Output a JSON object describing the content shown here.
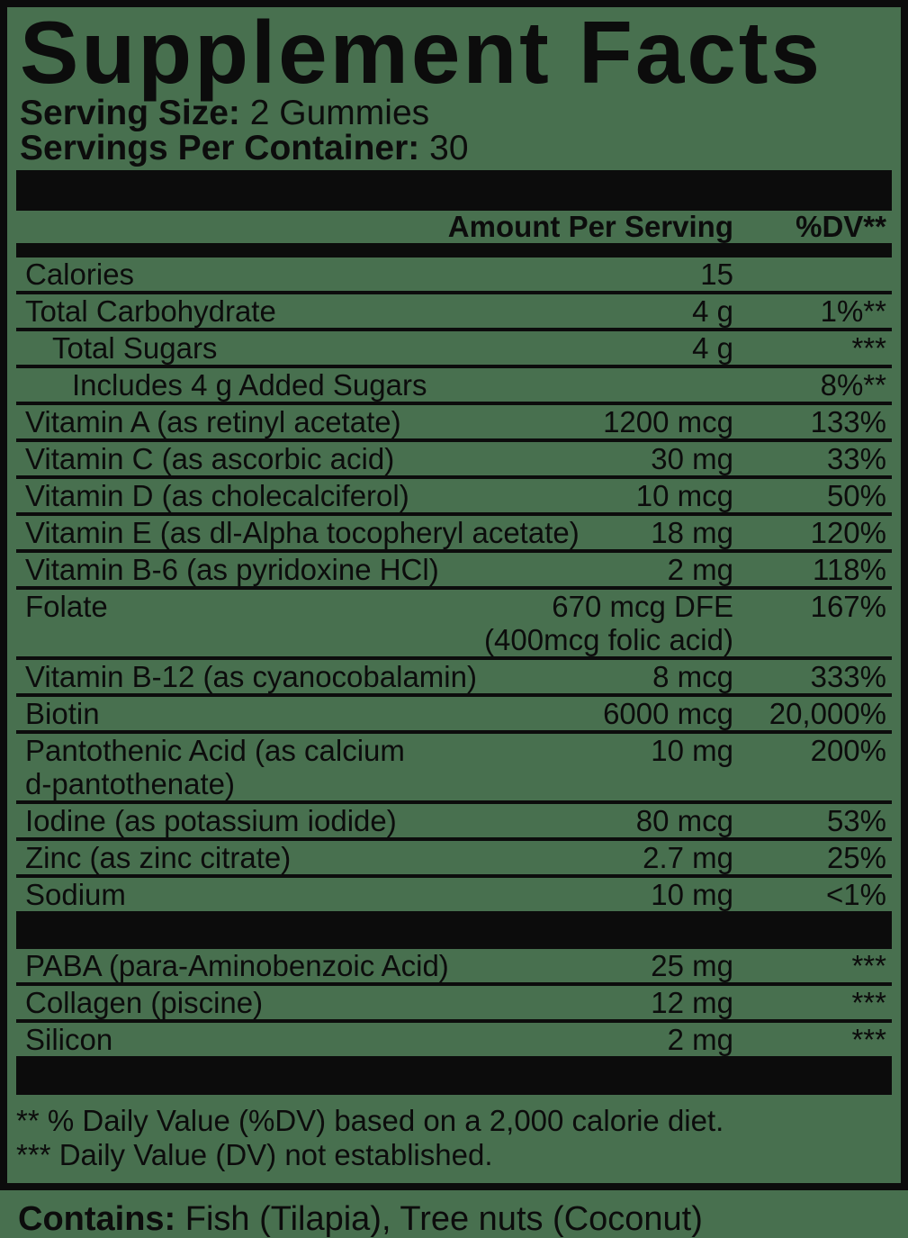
{
  "colors": {
    "background": "#48704F",
    "ink": "#0C0C0C"
  },
  "title": "Supplement Facts",
  "serving": {
    "size_label": "Serving Size:",
    "size_value": " 2 Gummies",
    "count_label": "Servings Per Container:",
    "count_value": " 30"
  },
  "table": {
    "amount_header": "Amount Per Serving",
    "dv_header": "%DV**",
    "rows": [
      {
        "name": "Calories",
        "amount": "15",
        "dv": "",
        "indent": 0
      },
      {
        "name": "Total Carbohydrate",
        "amount": "4 g",
        "dv": "1%**",
        "indent": 0
      },
      {
        "name": "Total Sugars",
        "amount": "4 g",
        "dv": "***",
        "indent": 1
      },
      {
        "name": "Includes 4 g Added Sugars",
        "amount": "",
        "dv": "8%**",
        "indent": 2
      },
      {
        "name": "Vitamin A (as retinyl acetate)",
        "amount": "1200 mcg",
        "dv": "133%",
        "indent": 0
      },
      {
        "name": "Vitamin C (as ascorbic acid)",
        "amount": "30 mg",
        "dv": "33%",
        "indent": 0
      },
      {
        "name": "Vitamin D (as cholecalciferol)",
        "amount": "10 mcg",
        "dv": "50%",
        "indent": 0
      },
      {
        "name": "Vitamin E (as dl-Alpha tocopheryl acetate)",
        "amount": "18 mg",
        "dv": "120%",
        "indent": 0
      },
      {
        "name": "Vitamin B-6 (as pyridoxine HCl)",
        "amount": "2 mg",
        "dv": "118%",
        "indent": 0
      },
      {
        "name": "Folate",
        "amount": "670 mcg DFE",
        "dv": "167%",
        "indent": 0,
        "amount2": "(400mcg folic acid)"
      },
      {
        "name": "Vitamin B-12 (as cyanocobalamin)",
        "amount": "8 mcg",
        "dv": "333%",
        "indent": 0
      },
      {
        "name": "Biotin",
        "amount": "6000 mcg",
        "dv": "20,000%",
        "indent": 0
      },
      {
        "name": "Pantothenic Acid (as calcium",
        "amount": "10 mg",
        "dv": "200%",
        "indent": 0,
        "name2": "d-pantothenate)"
      },
      {
        "name": "Iodine (as potassium iodide)",
        "amount": "80 mcg",
        "dv": "53%",
        "indent": 0
      },
      {
        "name": "Zinc (as zinc citrate)",
        "amount": "2.7 mg",
        "dv": "25%",
        "indent": 0
      },
      {
        "name": "Sodium",
        "amount": "10 mg",
        "dv": "<1%",
        "indent": 0
      }
    ],
    "extra_rows": [
      {
        "name": "PABA (para-Aminobenzoic Acid)",
        "amount": "25 mg",
        "dv": "***",
        "indent": 0
      },
      {
        "name": "Collagen (piscine)",
        "amount": "12 mg",
        "dv": "***",
        "indent": 0
      },
      {
        "name": "Silicon",
        "amount": "2 mg",
        "dv": "***",
        "indent": 0
      }
    ]
  },
  "footnotes": [
    "** % Daily Value (%DV) based on a 2,000 calorie diet.",
    "*** Daily Value (DV) not established."
  ],
  "contains": {
    "label": "Contains:",
    "value": " Fish (Tilapia), Tree nuts (Coconut)"
  }
}
